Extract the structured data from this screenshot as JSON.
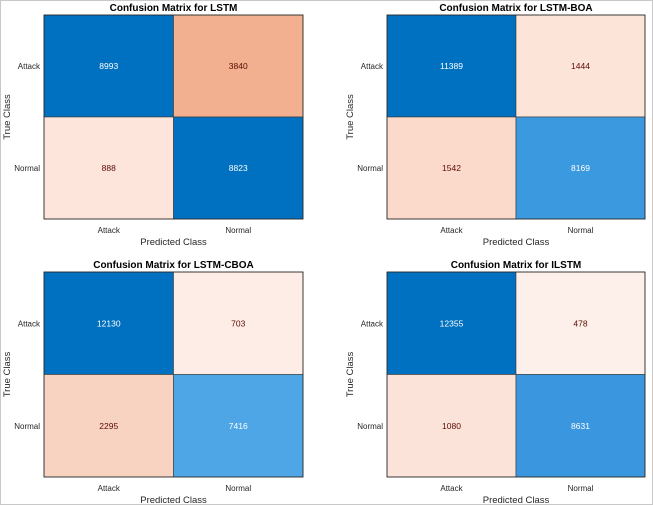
{
  "chart_data": [
    {
      "type": "heatmap",
      "title": "Confusion Matrix for LSTM",
      "xlabel": "Predicted Class",
      "ylabel": "True Class",
      "x_categories": [
        "Attack",
        "Normal"
      ],
      "y_categories": [
        "Attack",
        "Normal"
      ],
      "values": [
        [
          8993,
          3840
        ],
        [
          888,
          8823
        ]
      ],
      "cell_colors": [
        [
          "#0070c0",
          "#f2b090"
        ],
        [
          "#fde5dc",
          "#0070c0"
        ]
      ],
      "text_colors": [
        [
          "#ffffff",
          "#5a0a00"
        ],
        [
          "#5a0a00",
          "#ffffff"
        ]
      ]
    },
    {
      "type": "heatmap",
      "title": "Confusion Matrix for LSTM-BOA",
      "xlabel": "Predicted Class",
      "ylabel": "True Class",
      "x_categories": [
        "Attack",
        "Normal"
      ],
      "y_categories": [
        "Attack",
        "Normal"
      ],
      "values": [
        [
          11389,
          1444
        ],
        [
          1542,
          8169
        ]
      ],
      "cell_colors": [
        [
          "#0070c0",
          "#fde4d9"
        ],
        [
          "#fbd9cb",
          "#3b99e0"
        ]
      ],
      "text_colors": [
        [
          "#ffffff",
          "#5a0a00"
        ],
        [
          "#5a0a00",
          "#ffffff"
        ]
      ]
    },
    {
      "type": "heatmap",
      "title": "Confusion Matrix for LSTM-CBOA",
      "xlabel": "Predicted Class",
      "ylabel": "True Class",
      "x_categories": [
        "Attack",
        "Normal"
      ],
      "y_categories": [
        "Attack",
        "Normal"
      ],
      "values": [
        [
          12130,
          703
        ],
        [
          2295,
          7416
        ]
      ],
      "cell_colors": [
        [
          "#0070c0",
          "#fdede6"
        ],
        [
          "#f9d3c2",
          "#4ea6e6"
        ]
      ],
      "text_colors": [
        [
          "#ffffff",
          "#5a0a00"
        ],
        [
          "#5a0a00",
          "#ffffff"
        ]
      ]
    },
    {
      "type": "heatmap",
      "title": "Confusion Matrix for ILSTM",
      "xlabel": "Predicted Class",
      "ylabel": "True Class",
      "x_categories": [
        "Attack",
        "Normal"
      ],
      "y_categories": [
        "Attack",
        "Normal"
      ],
      "values": [
        [
          12355,
          478
        ],
        [
          1080,
          8631
        ]
      ],
      "cell_colors": [
        [
          "#0070c0",
          "#fdefe9"
        ],
        [
          "#fce3d9",
          "#3a97df"
        ]
      ],
      "text_colors": [
        [
          "#ffffff",
          "#5a0a00"
        ],
        [
          "#5a0a00",
          "#ffffff"
        ]
      ]
    }
  ]
}
